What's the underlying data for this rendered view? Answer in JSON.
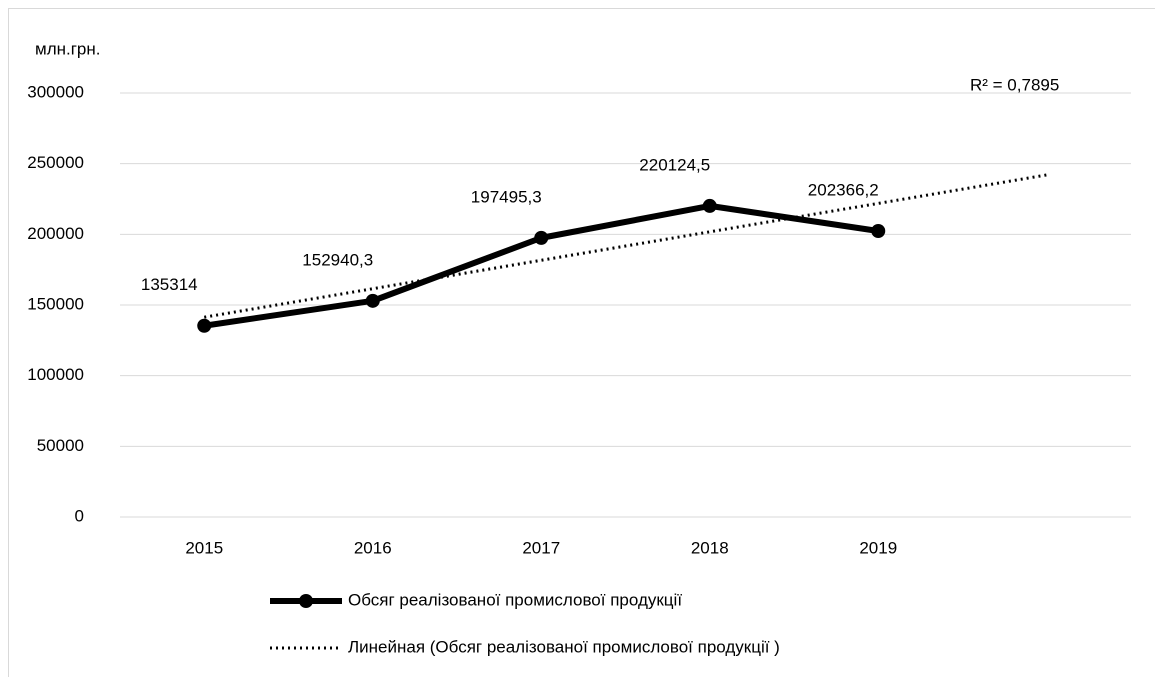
{
  "chart_data": {
    "type": "line",
    "y_axis_label": "млн.грн.",
    "categories": [
      "2015",
      "2016",
      "2017",
      "2018",
      "2019",
      null
    ],
    "series": [
      {
        "name": "Обсяг реалізованої промислової продукції",
        "color": "#000000",
        "values": [
          135314,
          152940.3,
          197495.3,
          220124.5,
          202366.2,
          null
        ],
        "value_labels": [
          "135314",
          "152940,3",
          "197495,3",
          "220124,5",
          "202366,2",
          null
        ]
      },
      {
        "name": "Линейная (Обсяг реалізованої промислової продукції )",
        "color": "#000000",
        "style": "dotted",
        "values": [
          141390.3,
          161519.2,
          181648.1,
          201776.9,
          221905.8,
          242034.6
        ]
      }
    ],
    "annotation": "R² = 0,7895",
    "ylim": [
      0,
      300000
    ],
    "yticks": [
      0,
      50000,
      100000,
      150000,
      200000,
      250000,
      300000
    ],
    "grid": true
  }
}
